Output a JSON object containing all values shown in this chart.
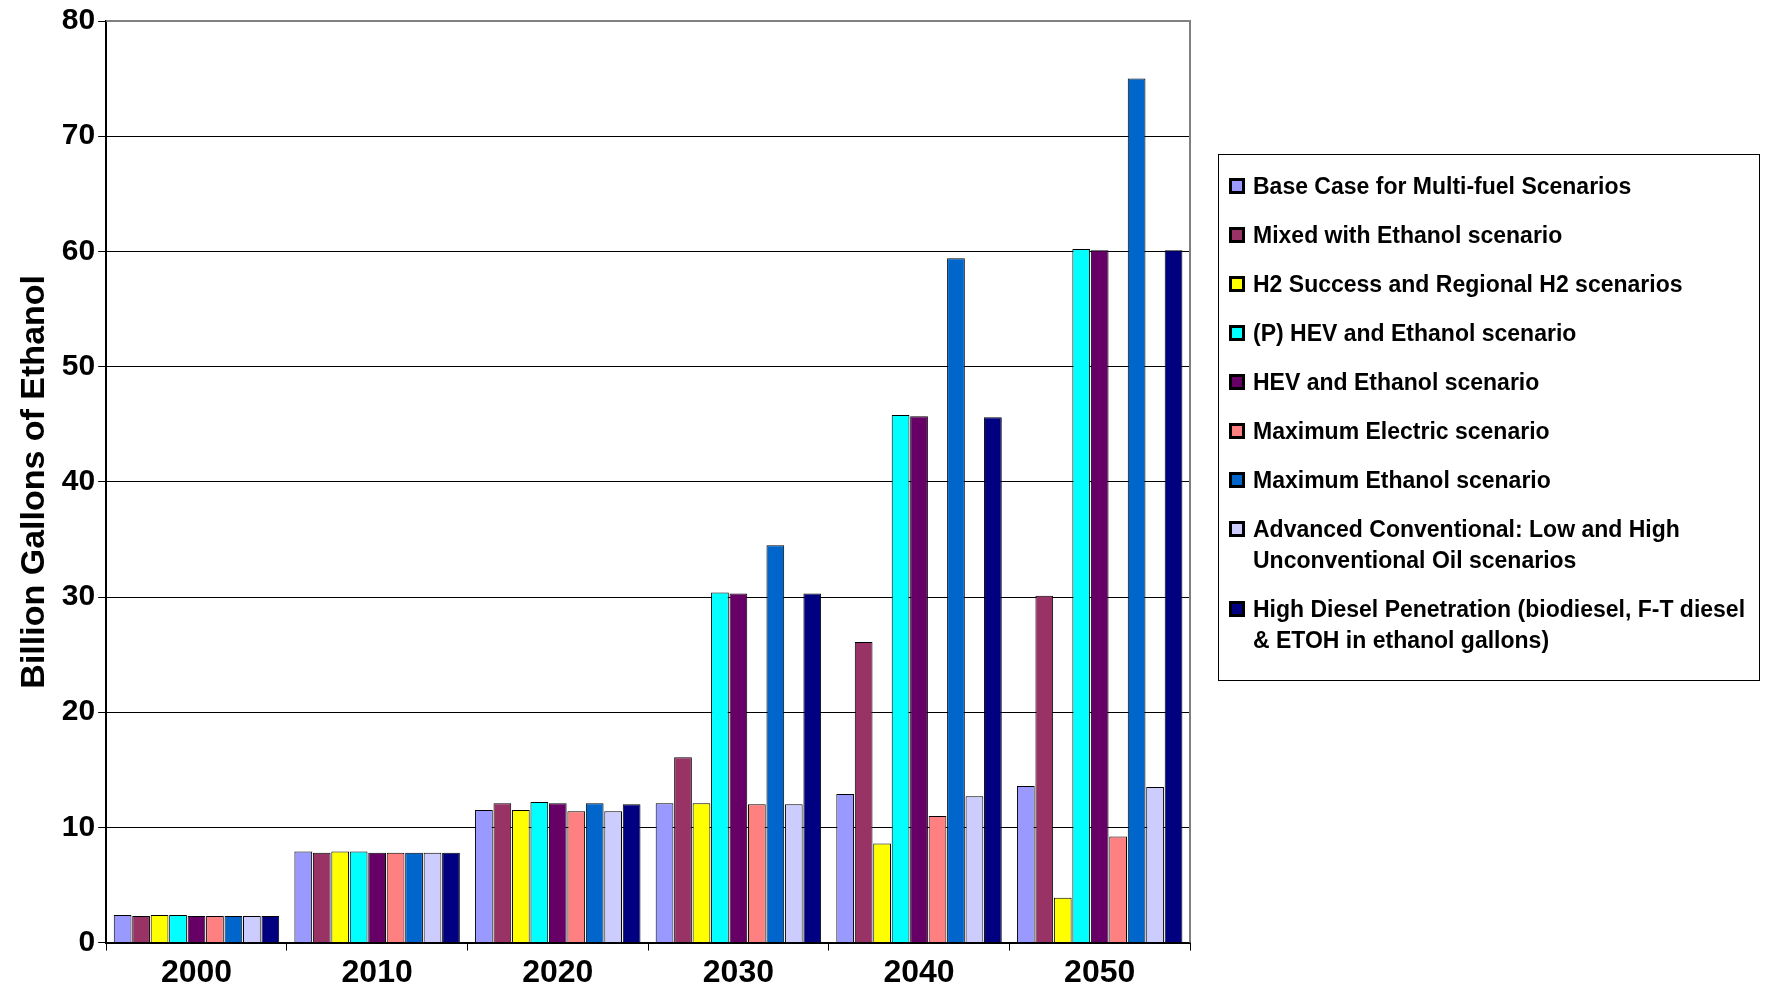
{
  "chart_data": {
    "type": "bar",
    "ylabel": "Billion Gallons of Ethanol",
    "categories": [
      "2000",
      "2010",
      "2020",
      "2030",
      "2040",
      "2050"
    ],
    "series": [
      {
        "name": "Base Case for Multi-fuel Scenarios",
        "color": "#9999ff",
        "values": [
          2.4,
          7.9,
          11.5,
          12.1,
          12.9,
          13.6
        ]
      },
      {
        "name": "Mixed with Ethanol scenario",
        "color": "#993366",
        "values": [
          2.3,
          7.8,
          12.1,
          16.1,
          26.1,
          30.1
        ]
      },
      {
        "name": "H2 Success and Regional H2 scenarios",
        "color": "#ffff00",
        "values": [
          2.4,
          7.9,
          11.5,
          12.1,
          8.6,
          3.9
        ]
      },
      {
        "name": "(P) HEV and Ethanol scenario",
        "color": "#00ffff",
        "values": [
          2.4,
          7.9,
          12.2,
          30.4,
          45.8,
          60.2
        ]
      },
      {
        "name": "HEV and Ethanol scenario",
        "color": "#660066",
        "values": [
          2.3,
          7.8,
          12.1,
          30.3,
          45.7,
          60.1
        ]
      },
      {
        "name": "Maximum Electric scenario",
        "color": "#ff8080",
        "values": [
          2.3,
          7.8,
          11.4,
          12.0,
          11.0,
          9.2
        ]
      },
      {
        "name": "Maximum Ethanol scenario",
        "color": "#0066cc",
        "values": [
          2.3,
          7.8,
          12.1,
          34.5,
          59.4,
          75.0
        ]
      },
      {
        "name": "Advanced Conventional: Low and High Unconventional Oil scenarios",
        "color": "#ccccff",
        "values": [
          2.3,
          7.8,
          11.4,
          12.0,
          12.7,
          13.5
        ]
      },
      {
        "name": "High Diesel Penetration (biodiesel, F-T diesel & ETOH in ethanol gallons)",
        "color": "#000080",
        "values": [
          2.3,
          7.8,
          12.0,
          30.3,
          45.6,
          60.1
        ]
      }
    ],
    "ylim": [
      0,
      80
    ],
    "yticks": [
      0,
      10,
      20,
      30,
      40,
      50,
      60,
      70,
      80
    ],
    "grid": "y",
    "legend": "right"
  }
}
